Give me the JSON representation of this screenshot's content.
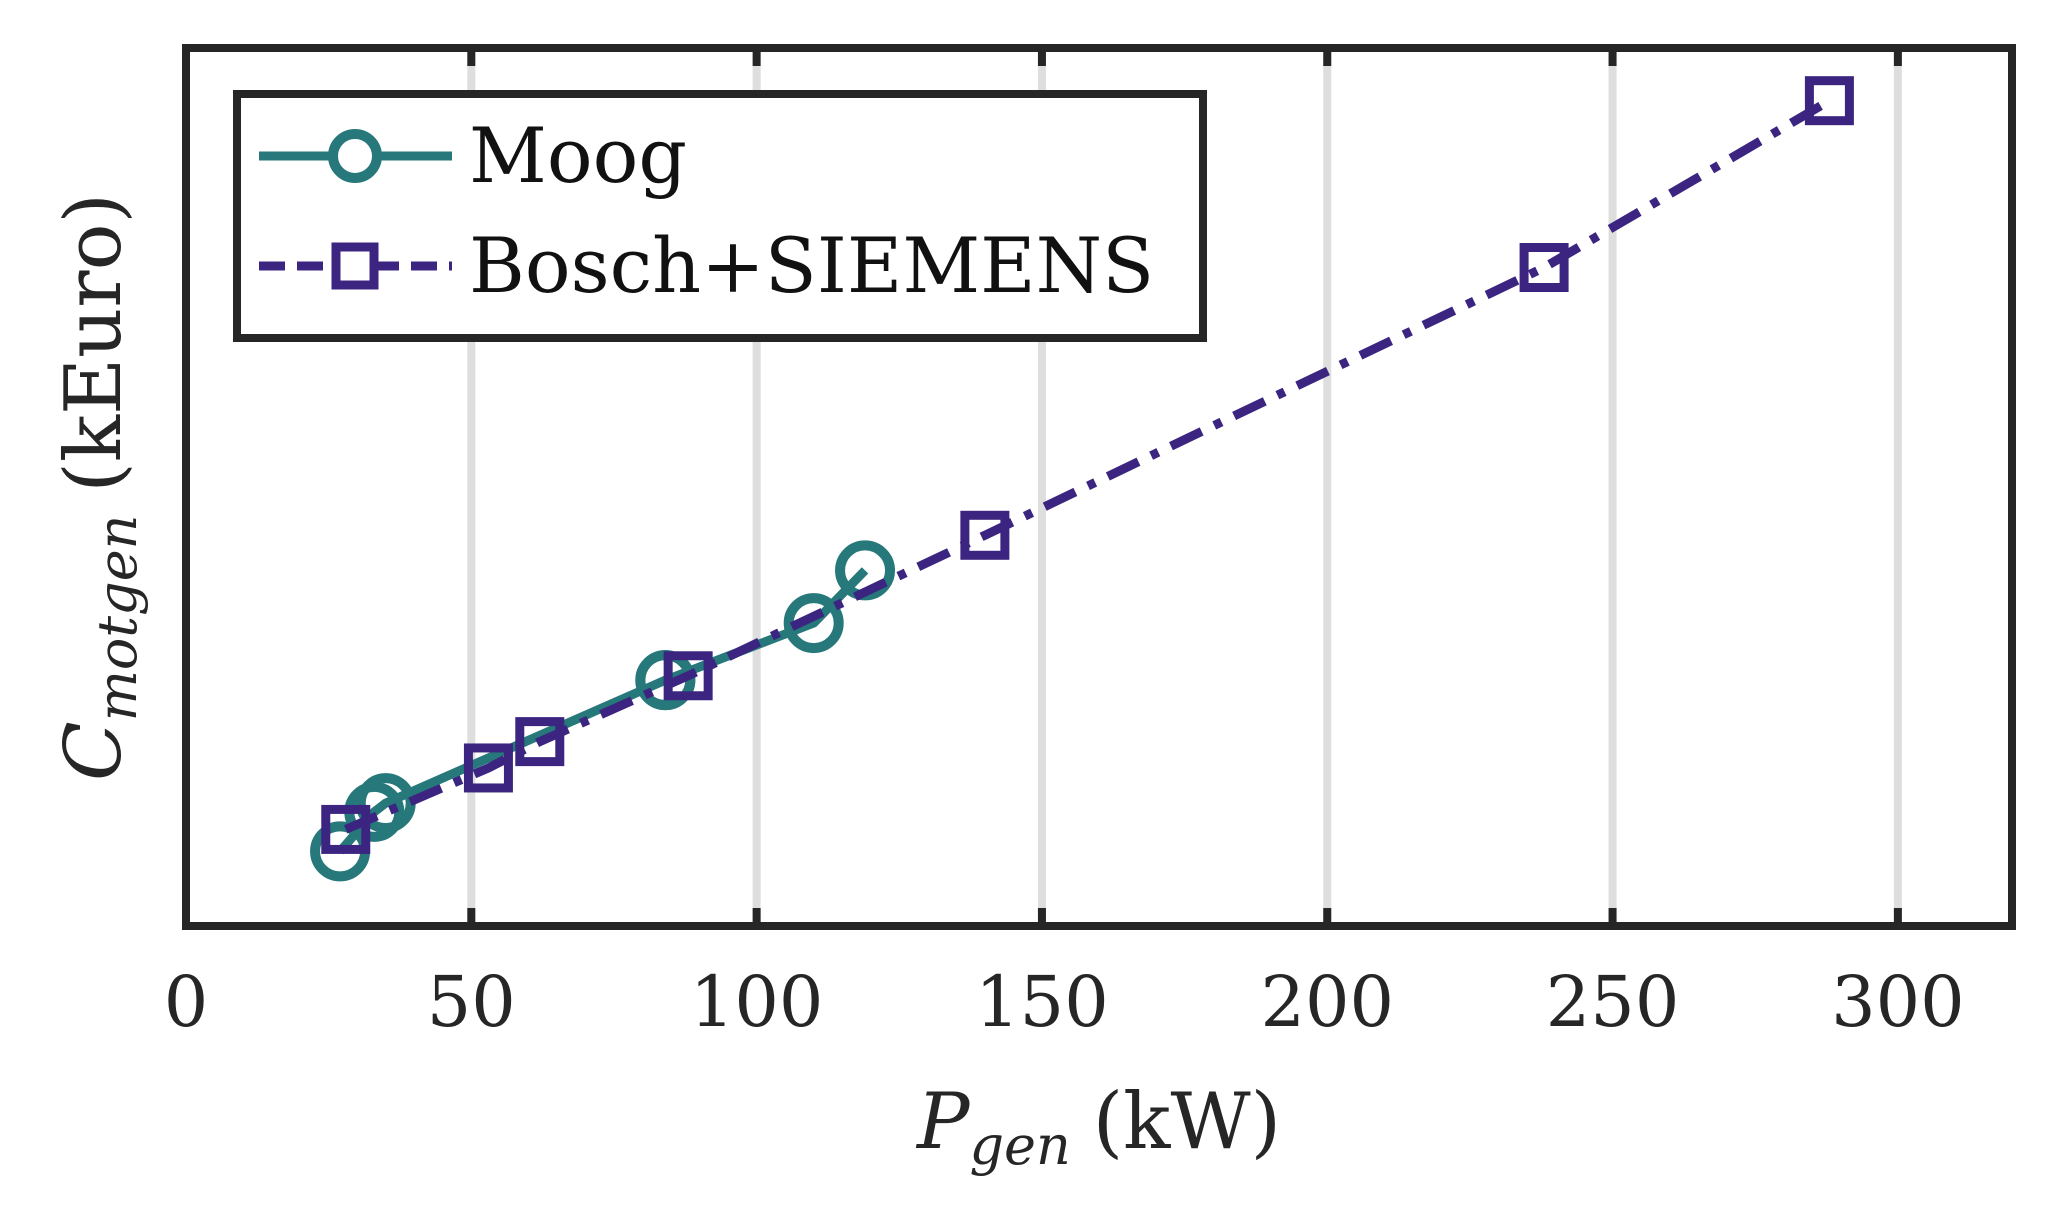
{
  "chart_data": {
    "type": "line",
    "title": "",
    "xlabel": {
      "main": "P",
      "sub": "gen",
      "unit": "(kW)"
    },
    "ylabel": {
      "main": "C",
      "sub": "motgen",
      "unit": "(kEuro)"
    },
    "xlim": [
      0,
      320
    ],
    "ylim": [
      0,
      1
    ],
    "xticks": [
      0,
      50,
      100,
      150,
      200,
      250,
      300
    ],
    "xtick_labels": [
      "0",
      "50",
      "100",
      "150",
      "200",
      "250",
      "300"
    ],
    "yticks_shown": false,
    "grid": "vertical",
    "legend_position": "top-left",
    "series": [
      {
        "name": "Moog",
        "color": "#26787a",
        "line_style": "solid",
        "marker": "circle",
        "x": [
          27,
          33,
          35,
          84,
          84,
          110,
          119
        ],
        "y": [
          0.085,
          0.13,
          0.14,
          0.28,
          0.28,
          0.345,
          0.405
        ]
      },
      {
        "name": "Bosch+SIEMENS",
        "color": "#3b2580",
        "line_style": "dashdot",
        "marker": "square",
        "x": [
          28,
          53,
          62,
          88,
          140,
          238,
          288
        ],
        "y": [
          0.11,
          0.18,
          0.21,
          0.285,
          0.445,
          0.75,
          0.94
        ]
      }
    ]
  }
}
